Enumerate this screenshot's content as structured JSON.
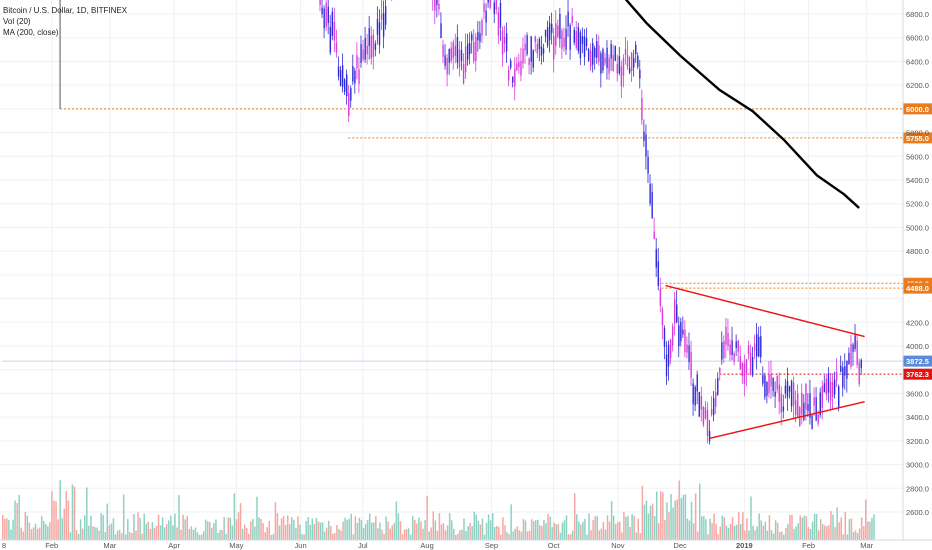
{
  "legend": {
    "symbol_line": "Bitcoin / U.S. Dollar, 1D, BITFINEX",
    "vol_line": "Vol (20)",
    "ma_line": "MA (200, close)"
  },
  "colors": {
    "up_candle": "#2f2bd9",
    "down_candle": "#d93ad9",
    "vol_up": "#8ed1c2",
    "vol_down": "#f4a7a3",
    "ma_line": "#000000",
    "triangle": "#f01010",
    "level_orange": "#e87c1e",
    "level_red": "#e11212",
    "last_price_tag": "#5a8ad8",
    "grid": "#eef0f4"
  },
  "chart_data": {
    "type": "candlestick",
    "title": "Bitcoin / U.S. Dollar, 1D, BITFINEX",
    "xlabel": "",
    "ylabel": "",
    "x_ticks": [
      "8",
      "Feb",
      "Mar",
      "Apr",
      "May",
      "Jun",
      "Jul",
      "Aug",
      "Sep",
      "Oct",
      "Nov",
      "Dec",
      "2019",
      "Feb",
      "Mar"
    ],
    "y_ticks": [
      "6800.0",
      "6600.0",
      "6400.0",
      "6200.0",
      "5800.0",
      "5600.0",
      "5400.0",
      "5200.0",
      "5000.0",
      "4800.0",
      "4200.0",
      "4000.0",
      "3600.0",
      "3400.0",
      "3200.0",
      "3000.0",
      "2800.0",
      "2600.0"
    ],
    "ylim": [
      2550,
      6950
    ],
    "grid": true,
    "legend_position": "top-left",
    "price_levels": [
      {
        "label": "6000.0",
        "value": 6000,
        "color": "orange",
        "from": "2018-02-05"
      },
      {
        "label": "5755.0",
        "value": 5755,
        "color": "orange",
        "from": "2018-06-24"
      },
      {
        "label": "4529.0",
        "value": 4529,
        "color": "orange",
        "from": "2018-11-22"
      },
      {
        "label": "4488.0",
        "value": 4488,
        "color": "orange",
        "from": "2018-11-22"
      },
      {
        "label": "3762.3",
        "value": 3762.3,
        "color": "red",
        "from": "2018-12-20"
      },
      {
        "label": "3872.5",
        "value": 3872.5,
        "color": "blue",
        "from": "2018-01-08"
      }
    ],
    "trendlines": [
      {
        "name": "upper",
        "from": [
          "2018-11-24",
          4510
        ],
        "to": [
          "2019-02-28",
          4080
        ]
      },
      {
        "name": "lower",
        "from": [
          "2018-12-15",
          3220
        ],
        "to": [
          "2019-02-28",
          3530
        ]
      }
    ],
    "ma200": {
      "name": "MA (200, close)",
      "points": [
        [
          "2018-11-01",
          7000
        ],
        [
          "2018-11-15",
          6720
        ],
        [
          "2018-12-01",
          6450
        ],
        [
          "2018-12-20",
          6160
        ],
        [
          "2019-01-05",
          5980
        ],
        [
          "2019-01-20",
          5740
        ],
        [
          "2019-02-05",
          5440
        ],
        [
          "2019-02-18",
          5280
        ],
        [
          "2019-02-25",
          5170
        ]
      ]
    },
    "price_path": [
      [
        "2018-05-20",
        8000
      ],
      [
        "2018-06-10",
        7000
      ],
      [
        "2018-06-24",
        6100
      ],
      [
        "2018-06-30",
        6400
      ],
      [
        "2018-07-10",
        6700
      ],
      [
        "2018-07-24",
        8100
      ],
      [
        "2018-08-10",
        6400
      ],
      [
        "2018-08-20",
        6400
      ],
      [
        "2018-09-01",
        7000
      ],
      [
        "2018-09-10",
        6300
      ],
      [
        "2018-09-20",
        6500
      ],
      [
        "2018-10-01",
        6600
      ],
      [
        "2018-10-11",
        6700
      ],
      [
        "2018-10-20",
        6500
      ],
      [
        "2018-10-31",
        6350
      ],
      [
        "2018-11-10",
        6450
      ],
      [
        "2018-11-14",
        5700
      ],
      [
        "2018-11-20",
        4600
      ],
      [
        "2018-11-25",
        3800
      ],
      [
        "2018-11-28",
        4300
      ],
      [
        "2018-12-07",
        3700
      ],
      [
        "2018-12-15",
        3300
      ],
      [
        "2018-12-20",
        3800
      ],
      [
        "2018-12-24",
        4100
      ],
      [
        "2019-01-01",
        3800
      ],
      [
        "2019-01-08",
        4050
      ],
      [
        "2019-01-10",
        3650
      ],
      [
        "2019-01-20",
        3550
      ],
      [
        "2019-01-28",
        3500
      ],
      [
        "2019-02-05",
        3450
      ],
      [
        "2019-02-08",
        3650
      ],
      [
        "2019-02-15",
        3650
      ],
      [
        "2019-02-19",
        3900
      ],
      [
        "2019-02-23",
        4100
      ],
      [
        "2019-02-24",
        3850
      ],
      [
        "2019-02-26",
        3820
      ]
    ]
  }
}
